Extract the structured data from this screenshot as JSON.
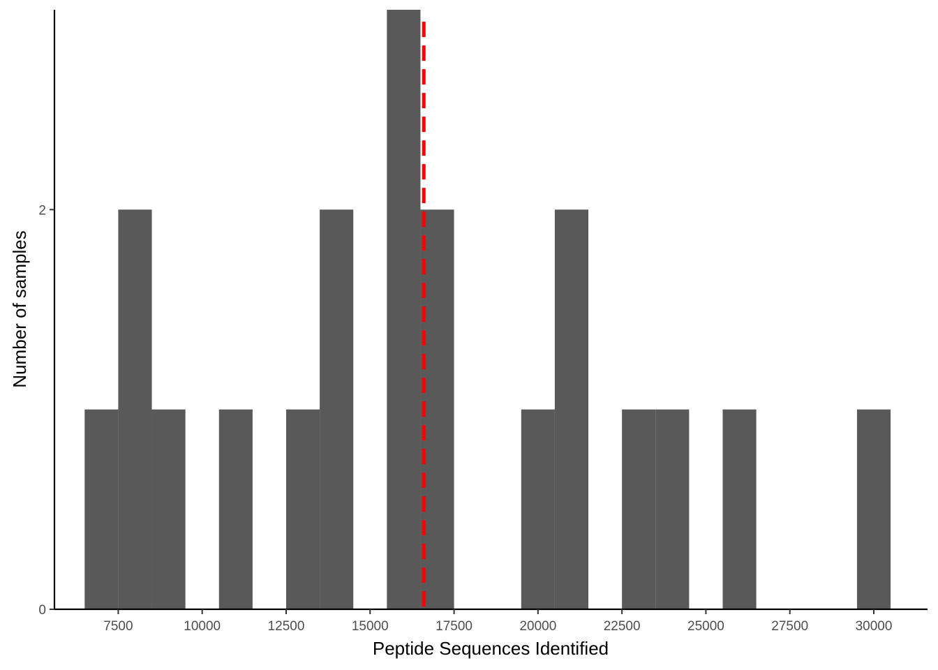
{
  "chart_data": {
    "type": "bar",
    "xlabel": "Peptide Sequences Identified",
    "ylabel": "Number of samples",
    "bin_width": 1000,
    "x": [
      7000,
      8000,
      9000,
      11000,
      13000,
      14000,
      16000,
      17000,
      20000,
      21000,
      23000,
      24000,
      26000,
      30000
    ],
    "values": [
      1,
      2,
      1,
      1,
      1,
      2,
      3,
      2,
      1,
      2,
      1,
      1,
      1,
      1
    ],
    "xlim": [
      5600,
      31600
    ],
    "ylim": [
      0,
      3
    ],
    "x_ticks": [
      7500,
      10000,
      12500,
      15000,
      17500,
      20000,
      22500,
      25000,
      27500,
      30000
    ],
    "y_ticks": [
      0,
      2
    ],
    "mean_line": 16600,
    "bar_color": "#595959",
    "mean_line_color": "#ff0000",
    "grid": false,
    "legend": "none"
  }
}
